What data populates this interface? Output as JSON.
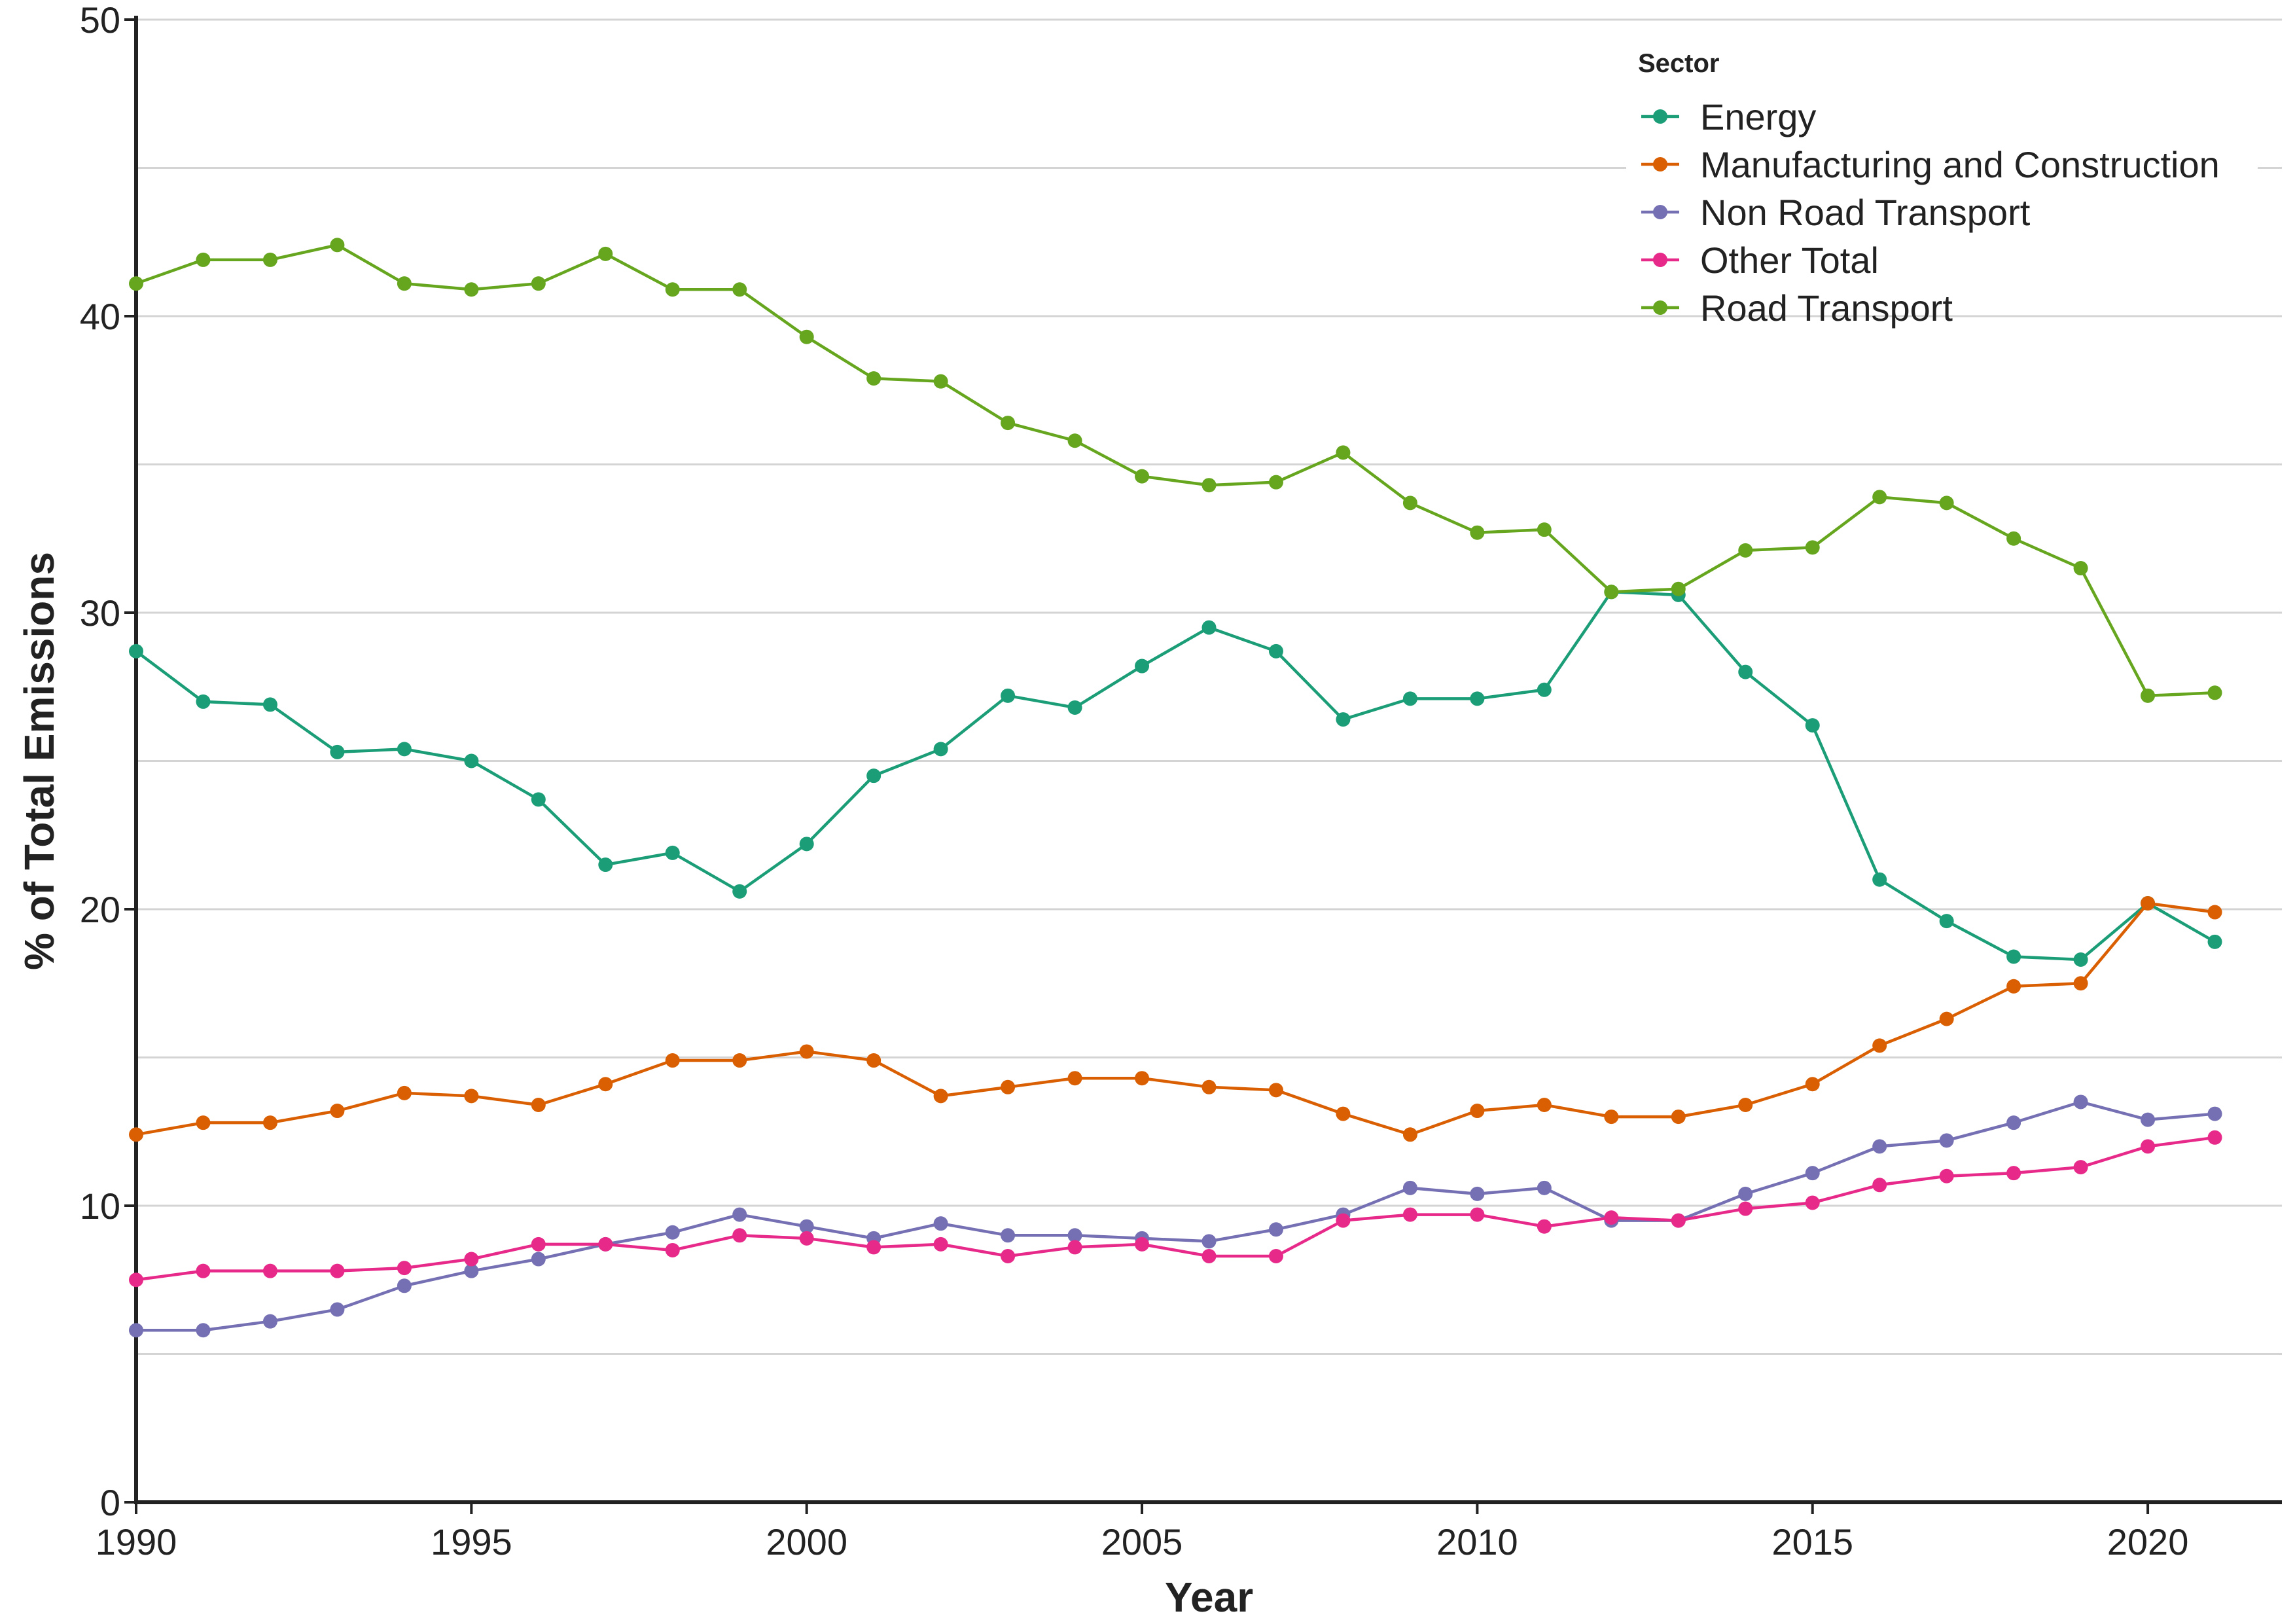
{
  "chart_data": {
    "type": "line",
    "xlabel": "Year",
    "ylabel": "% of Total Emissions",
    "xlim": [
      1990,
      2022
    ],
    "ylim": [
      0,
      50
    ],
    "x_ticks": [
      1990,
      1995,
      2000,
      2005,
      2010,
      2015,
      2020
    ],
    "y_ticks": [
      0,
      10,
      20,
      30,
      40,
      50
    ],
    "y_grid_step": 5,
    "grid": "horizontal",
    "legend": {
      "title": "Sector",
      "position": "top-right"
    },
    "x": [
      1990,
      1991,
      1992,
      1993,
      1994,
      1995,
      1996,
      1997,
      1998,
      1999,
      2000,
      2001,
      2002,
      2003,
      2004,
      2005,
      2006,
      2007,
      2008,
      2009,
      2010,
      2011,
      2012,
      2013,
      2014,
      2015,
      2016,
      2017,
      2018,
      2019,
      2020,
      2021
    ],
    "series": [
      {
        "name": "Energy",
        "color": "#1b9e77",
        "values": [
          28.7,
          27.0,
          26.9,
          25.3,
          25.4,
          25.0,
          23.7,
          21.5,
          21.9,
          20.6,
          22.2,
          24.5,
          25.4,
          27.2,
          26.8,
          28.2,
          29.5,
          28.7,
          26.4,
          27.1,
          27.1,
          27.4,
          30.7,
          30.6,
          28.0,
          26.2,
          21.0,
          19.6,
          18.4,
          18.3,
          20.2,
          18.9
        ]
      },
      {
        "name": "Manufacturing and Construction",
        "color": "#d95f02",
        "values": [
          12.4,
          12.8,
          12.8,
          13.2,
          13.8,
          13.7,
          13.4,
          14.1,
          14.9,
          14.9,
          15.2,
          14.9,
          13.7,
          14.0,
          14.3,
          14.3,
          14.0,
          13.9,
          13.1,
          12.4,
          13.2,
          13.4,
          13.0,
          13.0,
          13.4,
          14.1,
          15.4,
          16.3,
          17.4,
          17.5,
          20.2,
          19.9
        ]
      },
      {
        "name": "Non Road Transport",
        "color": "#7570b3",
        "values": [
          5.8,
          5.8,
          6.1,
          6.5,
          7.3,
          7.8,
          8.2,
          8.7,
          9.1,
          9.7,
          9.3,
          8.9,
          9.4,
          9.0,
          9.0,
          8.9,
          8.8,
          9.2,
          9.7,
          10.6,
          10.4,
          10.6,
          9.5,
          9.5,
          10.4,
          11.1,
          12.0,
          12.2,
          12.8,
          13.5,
          12.9,
          13.1
        ]
      },
      {
        "name": "Other Total",
        "color": "#e7298a",
        "values": [
          7.5,
          7.8,
          7.8,
          7.8,
          7.9,
          8.2,
          8.7,
          8.7,
          8.5,
          9.0,
          8.9,
          8.6,
          8.7,
          8.3,
          8.6,
          8.7,
          8.3,
          8.3,
          9.5,
          9.7,
          9.7,
          9.3,
          9.6,
          9.5,
          9.9,
          10.1,
          10.7,
          11.0,
          11.1,
          11.3,
          12.0,
          12.3
        ]
      },
      {
        "name": "Road Transport",
        "color": "#66a61e",
        "values": [
          41.1,
          41.9,
          41.9,
          42.4,
          41.1,
          40.9,
          41.1,
          42.1,
          40.9,
          40.9,
          39.3,
          37.9,
          37.8,
          36.4,
          35.8,
          34.6,
          34.3,
          34.4,
          35.4,
          33.7,
          32.7,
          32.8,
          30.7,
          30.8,
          32.1,
          32.2,
          33.9,
          33.7,
          32.5,
          31.5,
          27.2,
          27.3
        ]
      }
    ]
  }
}
